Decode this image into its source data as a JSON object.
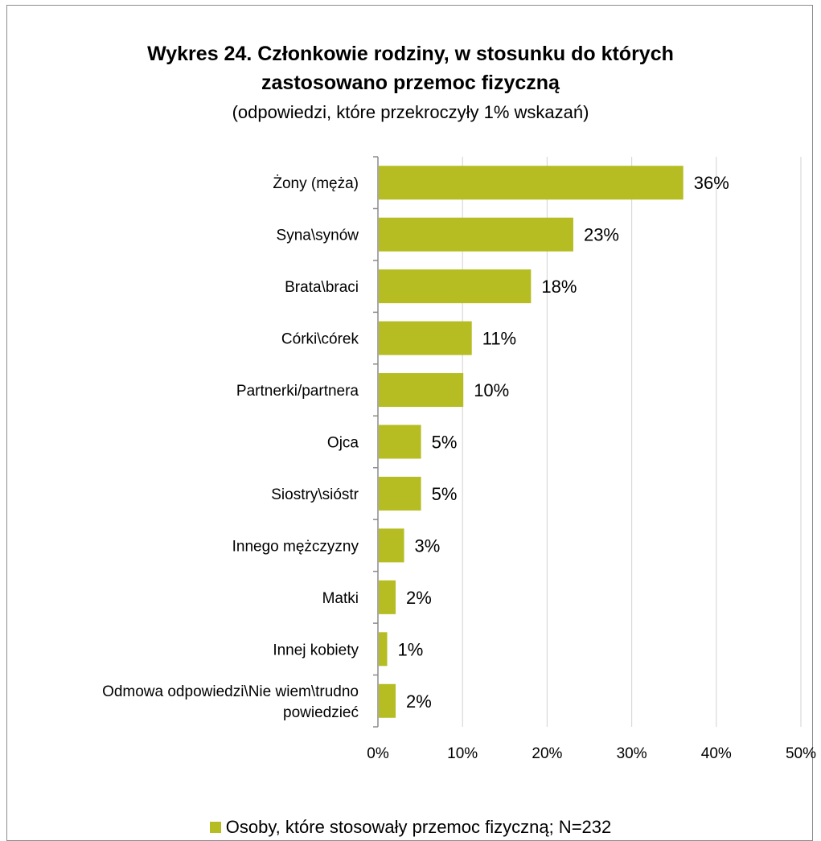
{
  "chart_data": {
    "type": "bar",
    "orientation": "horizontal",
    "title_line1": "Wykres 24. Członkowie rodziny, w stosunku do których",
    "title_line2": "zastosowano przemoc fizyczną",
    "subtitle": "(odpowiedzi, które przekroczyły 1% wskazań)",
    "categories": [
      "Żony (męża)",
      "Syna\\synów",
      "Brata\\braci",
      "Córki\\córek",
      "Partnerki/partnera",
      "Ojca",
      "Siostry\\sióstr",
      "Innego mężczyzny",
      "Matki",
      "Innej kobiety",
      "Odmowa odpowiedzi\\Nie wiem\\trudno powiedzieć"
    ],
    "series": [
      {
        "name": "Osoby, które stosowały przemoc fizyczną; N=232",
        "values": [
          36,
          23,
          18,
          11,
          10,
          5,
          5,
          3,
          2,
          1,
          2
        ],
        "labels": [
          "36%",
          "23%",
          "18%",
          "11%",
          "10%",
          "5%",
          "5%",
          "3%",
          "2%",
          "1%",
          "2%"
        ]
      }
    ],
    "x_ticks": [
      "0%",
      "10%",
      "20%",
      "30%",
      "40%",
      "50%"
    ],
    "xlim": [
      0,
      50
    ],
    "grid": true,
    "legend_position": "bottom",
    "bar_color": "#b5bd23",
    "grid_color": "#d9d9d9",
    "axis_color": "#8c8c8c"
  }
}
